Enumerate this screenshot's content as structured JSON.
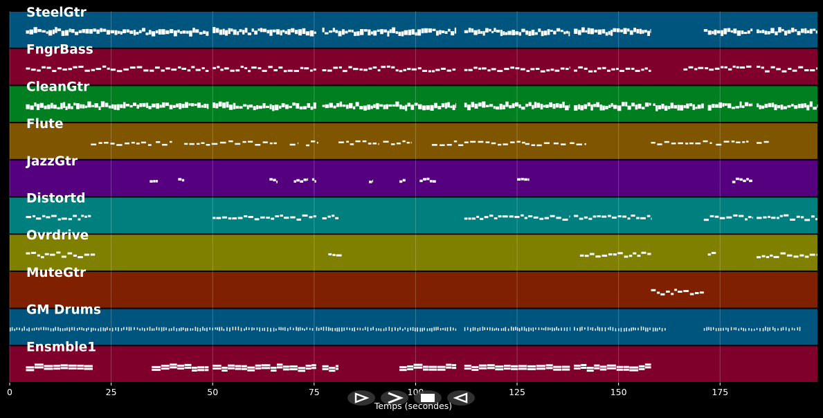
{
  "xlabel": "Temps (secondes)",
  "xticks": [
    0,
    25,
    50,
    75,
    100,
    125,
    150,
    175
  ],
  "xlim": [
    0,
    199
  ],
  "grid": true,
  "tracks": [
    {
      "name": "SteelGtr",
      "color": "#00557f",
      "density": "dense",
      "segments": [
        [
          4,
          49
        ],
        [
          50,
          75.5
        ],
        [
          77,
          110
        ],
        [
          112,
          138
        ],
        [
          139,
          158
        ],
        [
          171,
          183
        ],
        [
          184,
          199
        ]
      ]
    },
    {
      "name": "FngrBass",
      "color": "#7f002a",
      "density": "medium",
      "segments": [
        [
          4,
          49
        ],
        [
          50,
          75.5
        ],
        [
          77,
          110
        ],
        [
          112,
          138
        ],
        [
          139,
          158
        ],
        [
          166,
          183
        ],
        [
          184,
          199
        ]
      ]
    },
    {
      "name": "CleanGtr",
      "color": "#007f20",
      "density": "dense",
      "segments": [
        [
          4,
          49
        ],
        [
          50,
          75.5
        ],
        [
          77,
          110
        ],
        [
          112,
          138
        ],
        [
          139,
          158
        ],
        [
          158.5,
          171
        ],
        [
          172,
          183
        ],
        [
          184,
          199
        ]
      ]
    },
    {
      "name": "Flute",
      "color": "#7f5500",
      "density": "sparse",
      "segments": [
        [
          20,
          35
        ],
        [
          36,
          40
        ],
        [
          43,
          66
        ],
        [
          69,
          71
        ],
        [
          73,
          76
        ],
        [
          81,
          91
        ],
        [
          92,
          99
        ],
        [
          104,
          112
        ],
        [
          112,
          127
        ],
        [
          127,
          133
        ],
        [
          134,
          137
        ],
        [
          138,
          142
        ],
        [
          158,
          173
        ],
        [
          174,
          182
        ],
        [
          184,
          187
        ]
      ]
    },
    {
      "name": "JazzGtr",
      "color": "#55007f",
      "density": "blobs",
      "segments": [
        [
          34.5,
          36.5
        ],
        [
          41.5,
          43
        ],
        [
          64,
          66
        ],
        [
          70,
          73.5
        ],
        [
          74.5,
          75.5
        ],
        [
          88.5,
          89.5
        ],
        [
          96,
          97.5
        ],
        [
          101,
          105
        ],
        [
          125,
          128
        ],
        [
          178,
          183
        ]
      ]
    },
    {
      "name": "Distortd",
      "color": "#007f7f",
      "density": "medium",
      "segments": [
        [
          4,
          20
        ],
        [
          50,
          75.5
        ],
        [
          77,
          81
        ],
        [
          112,
          138
        ],
        [
          139,
          158
        ],
        [
          171,
          183
        ],
        [
          184,
          199
        ]
      ]
    },
    {
      "name": "Ovrdrive",
      "color": "#7f7f00",
      "density": "medium",
      "segments": [
        [
          4,
          21
        ],
        [
          78.5,
          82
        ],
        [
          140.5,
          158
        ],
        [
          172,
          174
        ],
        [
          184,
          199
        ]
      ]
    },
    {
      "name": "MuteGtr",
      "color": "#7f2000",
      "density": "medium",
      "segments": [
        [
          158,
          171
        ]
      ]
    },
    {
      "name": "GM Drums",
      "color": "#00557f",
      "density": "drums",
      "segments": [
        [
          0,
          75
        ],
        [
          75.5,
          110
        ],
        [
          112,
          138
        ],
        [
          139,
          162
        ],
        [
          171,
          195
        ]
      ]
    },
    {
      "name": "Ensmble1",
      "color": "#7f002a",
      "density": "chords",
      "segments": [
        [
          4,
          20.5
        ],
        [
          35,
          49
        ],
        [
          50,
          75.5
        ],
        [
          77,
          81
        ],
        [
          96,
          110
        ],
        [
          112,
          138
        ],
        [
          139,
          158
        ]
      ]
    }
  ],
  "controls": [
    {
      "name": "prev-control",
      "icon": "play-outline-icon"
    },
    {
      "name": "play-control",
      "icon": "forward-chevron-icon"
    },
    {
      "name": "stop-control",
      "icon": "stop-square-icon"
    },
    {
      "name": "back-control",
      "icon": "rewind-triangle-icon"
    }
  ]
}
